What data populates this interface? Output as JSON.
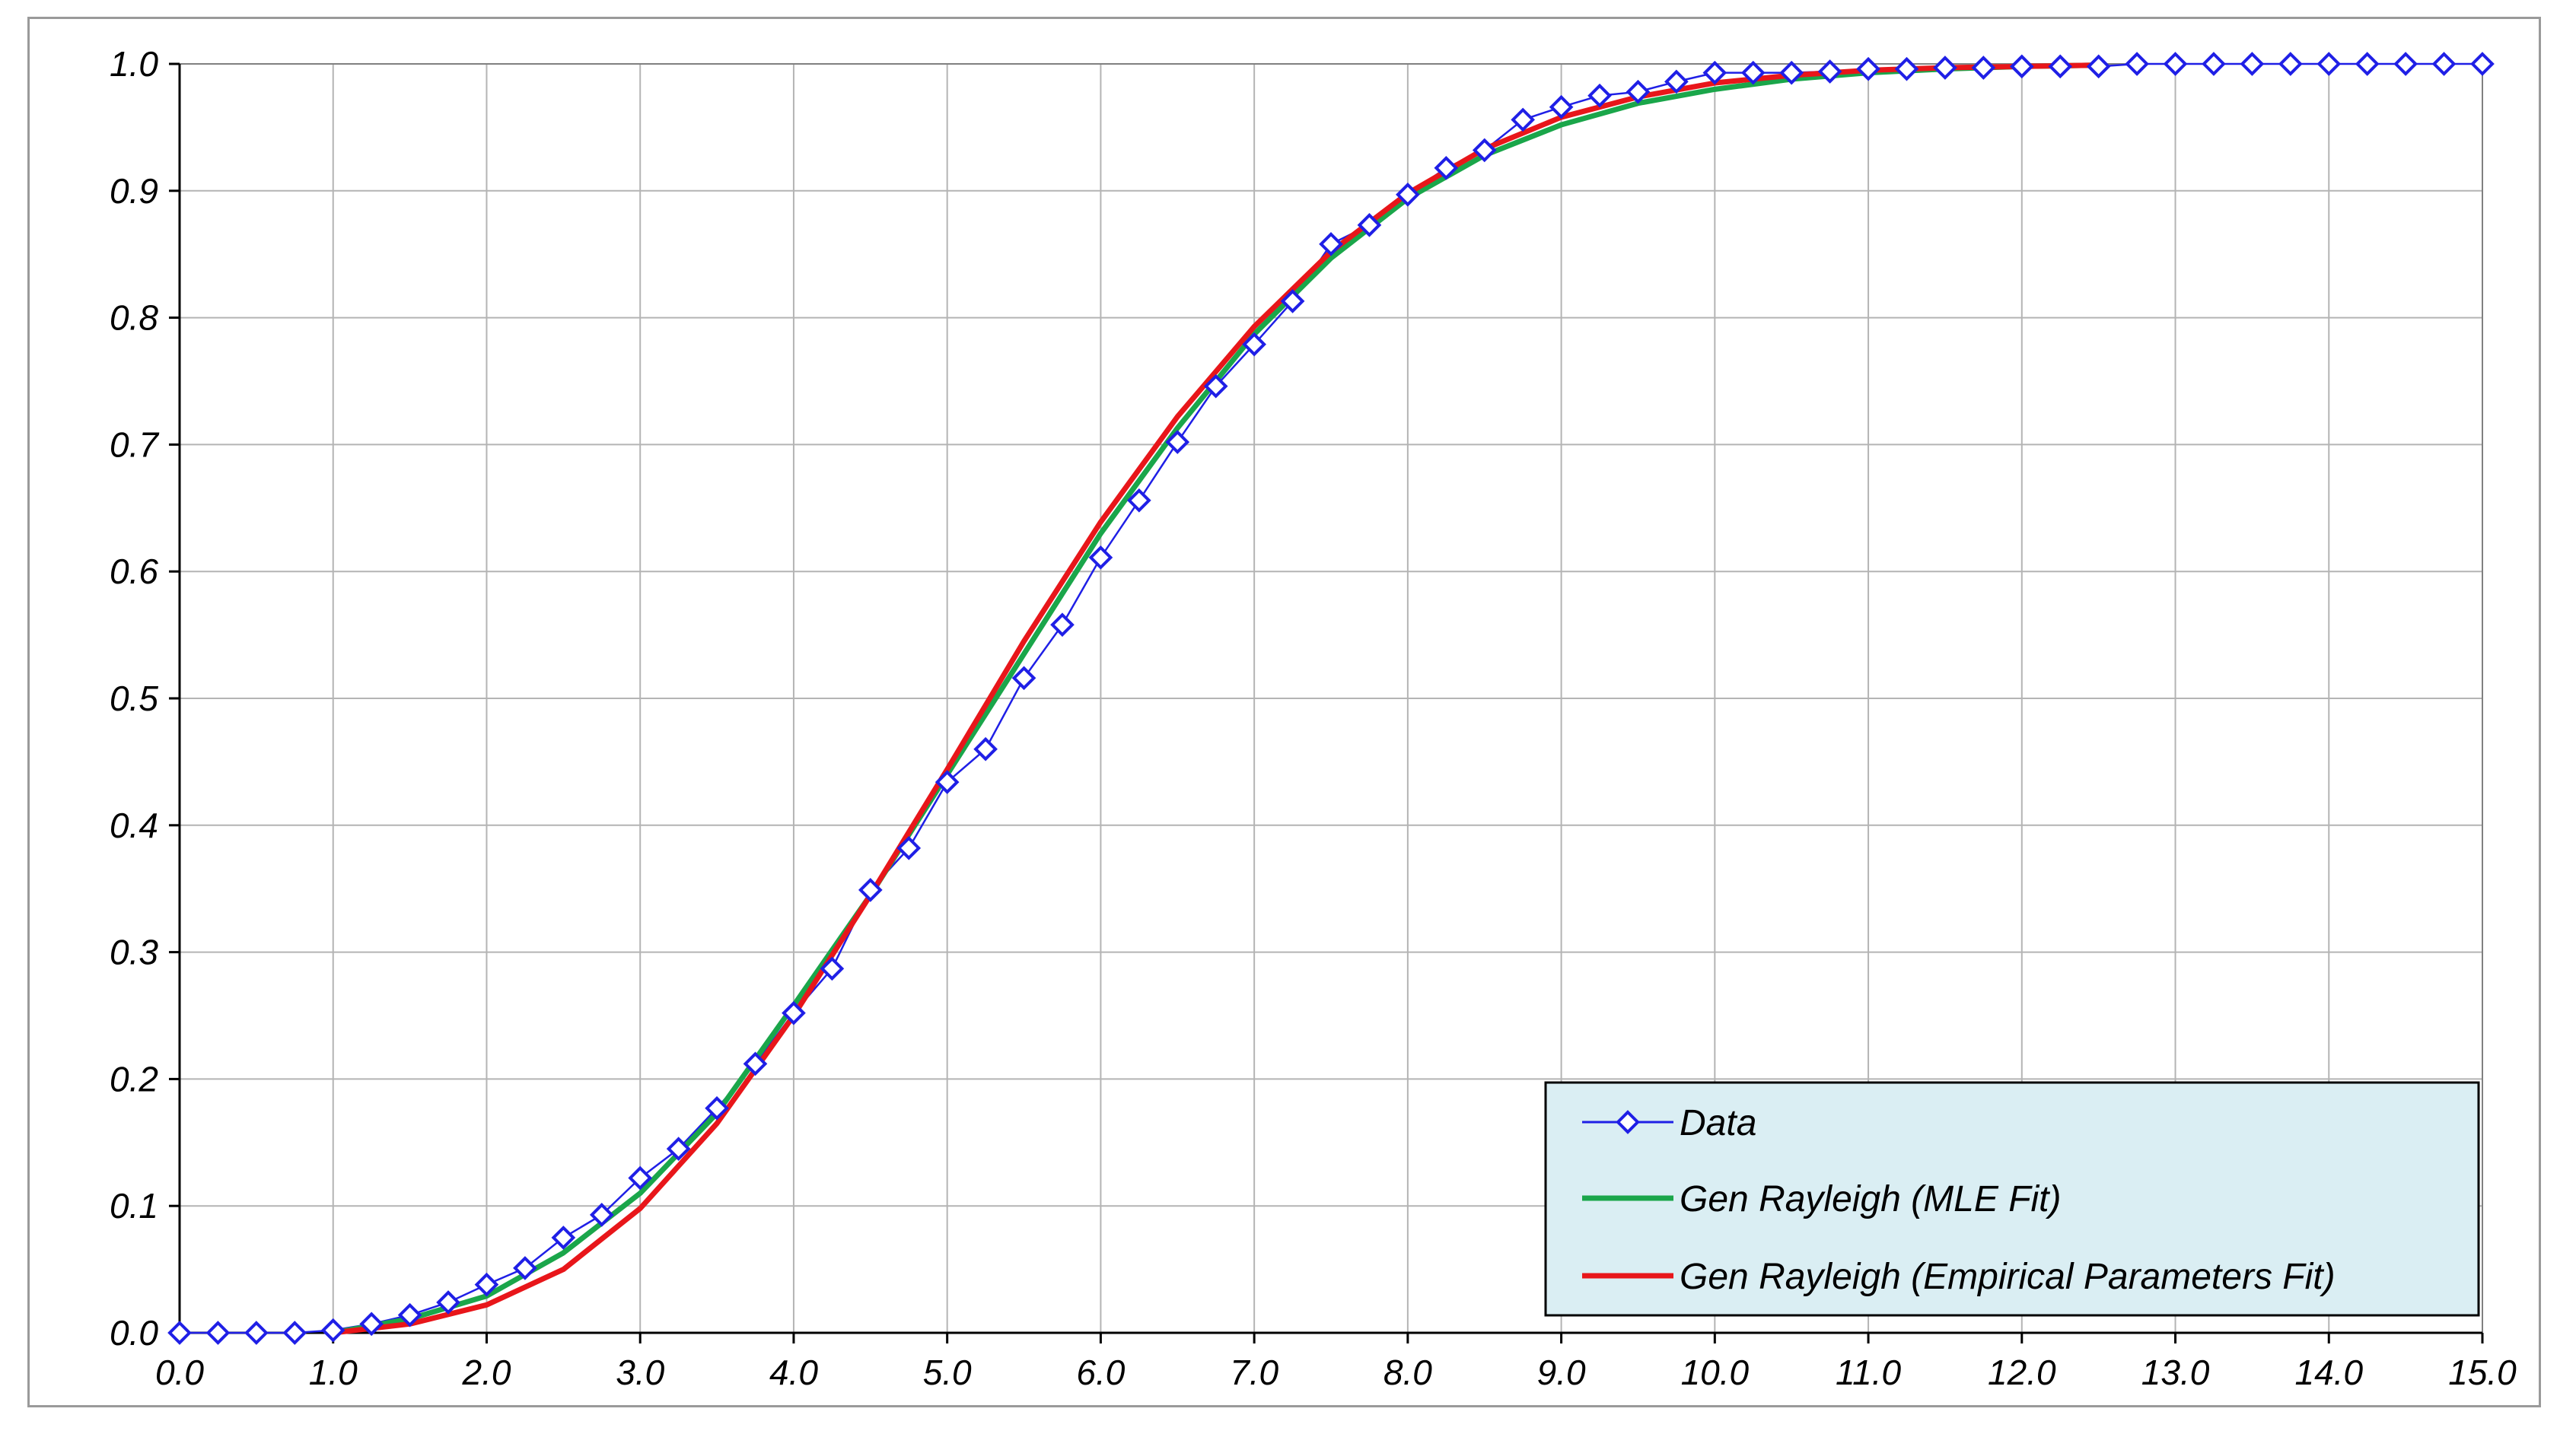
{
  "chart_data": {
    "type": "line",
    "title": "",
    "xlabel": "",
    "ylabel": "",
    "xlim": [
      0,
      15
    ],
    "ylim": [
      0,
      1
    ],
    "x_ticks": [
      "0.0",
      "1.0",
      "2.0",
      "3.0",
      "4.0",
      "5.0",
      "6.0",
      "7.0",
      "8.0",
      "9.0",
      "10.0",
      "11.0",
      "12.0",
      "13.0",
      "14.0",
      "15.0"
    ],
    "y_ticks": [
      "0.0",
      "0.1",
      "0.2",
      "0.3",
      "0.4",
      "0.5",
      "0.6",
      "0.7",
      "0.8",
      "0.9",
      "1.0"
    ],
    "grid": true,
    "legend_position": "bottom-right",
    "series": [
      {
        "name": "Data",
        "color": "#1f1fe6",
        "marker": "diamond-open",
        "x": [
          0,
          0.25,
          0.5,
          0.75,
          1.0,
          1.25,
          1.5,
          1.75,
          2.0,
          2.25,
          2.5,
          2.75,
          3.0,
          3.25,
          3.5,
          3.75,
          4.0,
          4.25,
          4.5,
          4.75,
          5.0,
          5.25,
          5.5,
          5.75,
          6.0,
          6.25,
          6.5,
          6.75,
          7.0,
          7.25,
          7.5,
          7.75,
          8.0,
          8.25,
          8.5,
          8.75,
          9.0,
          9.25,
          9.5,
          9.75,
          10.0,
          10.25,
          10.5,
          10.75,
          11.0,
          11.25,
          11.5,
          11.75,
          12.0,
          12.25,
          12.5,
          12.75,
          13.0,
          13.25,
          13.5,
          13.75,
          14.0,
          14.25,
          14.5,
          14.75,
          15.0
        ],
        "y": [
          0,
          0,
          0,
          0,
          0.002,
          0.007,
          0.014,
          0.024,
          0.038,
          0.051,
          0.075,
          0.093,
          0.122,
          0.145,
          0.177,
          0.212,
          0.252,
          0.287,
          0.349,
          0.382,
          0.434,
          0.46,
          0.516,
          0.558,
          0.611,
          0.656,
          0.702,
          0.746,
          0.779,
          0.813,
          0.858,
          0.873,
          0.897,
          0.918,
          0.932,
          0.956,
          0.966,
          0.975,
          0.978,
          0.986,
          0.993,
          0.993,
          0.993,
          0.994,
          0.996,
          0.996,
          0.997,
          0.997,
          0.998,
          0.998,
          0.998,
          1.0,
          1.0,
          1.0,
          1.0,
          1.0,
          1.0,
          1.0,
          1.0,
          1.0,
          1.0
        ]
      },
      {
        "name": "Gen Rayleigh (MLE Fit)",
        "color": "#1aa64a",
        "x": [
          1.0,
          1.5,
          2.0,
          2.5,
          3.0,
          3.5,
          4.0,
          4.5,
          5.0,
          5.5,
          6.0,
          6.5,
          7.0,
          7.5,
          8.0,
          8.5,
          9.0,
          9.5,
          10.0,
          10.5,
          11.0,
          11.5,
          12.0,
          12.5
        ],
        "y": [
          0.0,
          0.011,
          0.029,
          0.063,
          0.11,
          0.173,
          0.258,
          0.345,
          0.44,
          0.535,
          0.63,
          0.713,
          0.787,
          0.847,
          0.894,
          0.928,
          0.952,
          0.969,
          0.98,
          0.988,
          0.993,
          0.996,
          0.998,
          0.999
        ]
      },
      {
        "name": "Gen Rayleigh (Empirical Parameters Fit)",
        "color": "#e8161a",
        "x": [
          1.0,
          1.5,
          2.0,
          2.5,
          3.0,
          3.5,
          4.0,
          4.5,
          5.0,
          5.5,
          6.0,
          6.5,
          7.0,
          7.5,
          8.0,
          8.5,
          9.0,
          9.5,
          10.0,
          10.5,
          11.0,
          11.5,
          12.0,
          12.5
        ],
        "y": [
          0.0,
          0.007,
          0.022,
          0.05,
          0.098,
          0.165,
          0.25,
          0.345,
          0.444,
          0.545,
          0.639,
          0.722,
          0.793,
          0.852,
          0.898,
          0.933,
          0.958,
          0.974,
          0.985,
          0.991,
          0.995,
          0.997,
          0.998,
          0.999
        ]
      }
    ]
  }
}
